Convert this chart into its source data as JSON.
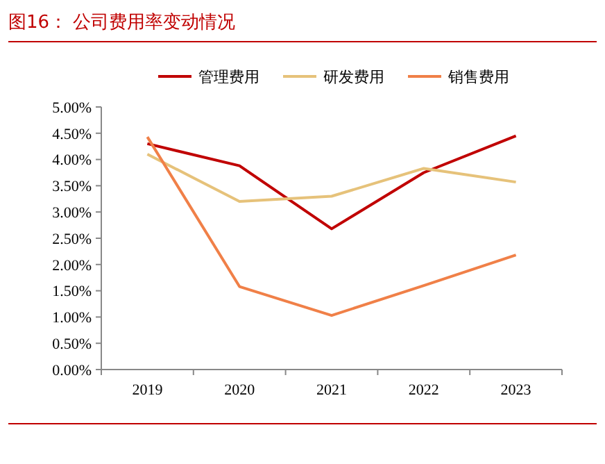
{
  "chart_data": {
    "type": "line",
    "title": "图16：  公司费用率变动情况",
    "categories": [
      "2019",
      "2020",
      "2021",
      "2022",
      "2023"
    ],
    "series": [
      {
        "name": "管理费用",
        "color": "#c00000",
        "values": [
          4.3,
          3.88,
          2.68,
          3.75,
          4.45
        ]
      },
      {
        "name": "研发费用",
        "color": "#e6c27a",
        "values": [
          4.1,
          3.2,
          3.3,
          3.83,
          3.57
        ]
      },
      {
        "name": "销售费用",
        "color": "#f08048",
        "values": [
          4.43,
          1.58,
          1.03,
          1.6,
          2.18
        ]
      }
    ],
    "ylim": [
      0,
      5
    ],
    "yticks": [
      {
        "value": 0,
        "label": "0.00%"
      },
      {
        "value": 0.5,
        "label": "0.50%"
      },
      {
        "value": 1,
        "label": "1.00%"
      },
      {
        "value": 1.5,
        "label": "1.50%"
      },
      {
        "value": 2,
        "label": "2.00%"
      },
      {
        "value": 2.5,
        "label": "2.50%"
      },
      {
        "value": 3,
        "label": "3.00%"
      },
      {
        "value": 3.5,
        "label": "3.50%"
      },
      {
        "value": 4,
        "label": "4.00%"
      },
      {
        "value": 4.5,
        "label": "4.50%"
      },
      {
        "value": 5,
        "label": "5.00%"
      }
    ],
    "legend": "top",
    "grid": false
  }
}
